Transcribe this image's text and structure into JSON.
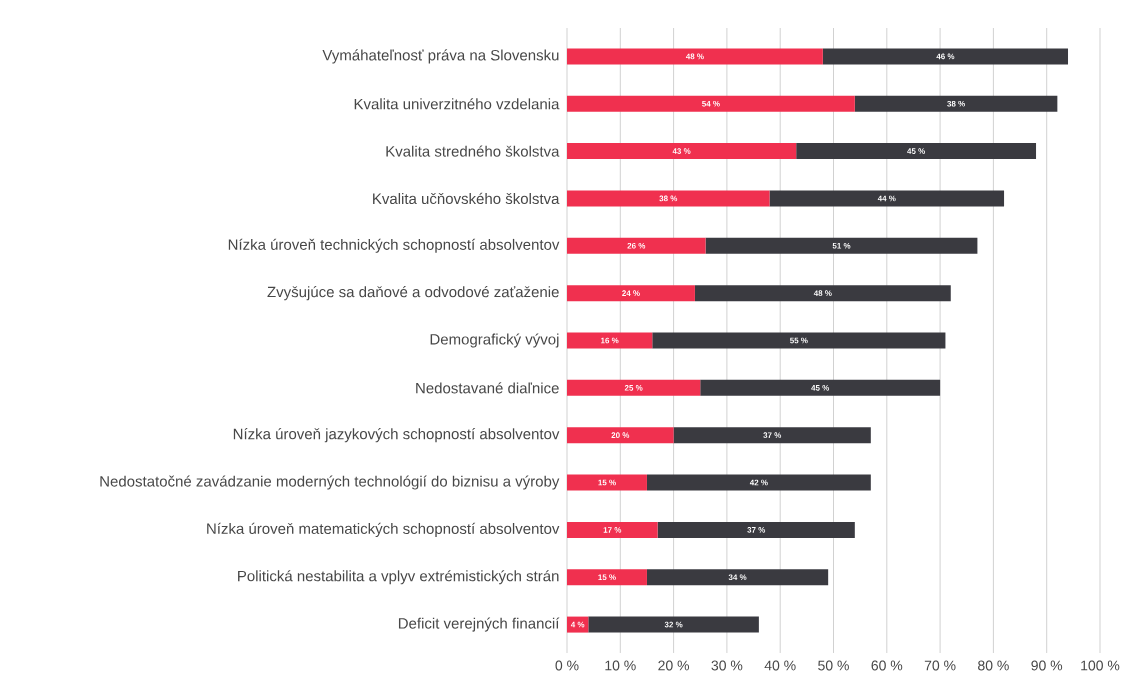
{
  "chart_data": {
    "type": "bar",
    "orientation": "horizontal",
    "stacked": true,
    "grid": "x",
    "categories": [
      "Vymáhateľnosť práva na Slovensku",
      "Kvalita univerzitného vzdelania",
      "Kvalita stredného školstva",
      "Kvalita učňovského školstva",
      "Nízka úroveň technických schopností absolventov",
      "Zvyšujúce sa daňové a odvodové zaťaženie",
      "Demografický vývoj",
      "Nedostavané diaľnice",
      "Nízka úroveň jazykových schopností absolventov",
      "Nedostatočné zavádzanie moderných technológií do biznisu a výroby",
      "Nízka úroveň matematických schopností absolventov",
      "Politická nestabilita a vplyv extrémistických strán",
      "Deficit verejných financií"
    ],
    "series": [
      {
        "color": "#f0304f",
        "values": [
          48,
          54,
          43,
          38,
          26,
          24,
          16,
          25,
          20,
          15,
          17,
          15,
          4
        ],
        "value_labels": [
          "48 %",
          "54 %",
          "43 %",
          "38 %",
          "26 %",
          "24 %",
          "16 %",
          "25 %",
          "20 %",
          "15 %",
          "17 %",
          "15 %",
          "4 %"
        ]
      },
      {
        "color": "#3a3a40",
        "values": [
          46,
          38,
          45,
          44,
          51,
          48,
          55,
          45,
          37,
          42,
          37,
          34,
          32
        ],
        "value_labels": [
          "46 %",
          "38 %",
          "45 %",
          "44 %",
          "51 %",
          "48 %",
          "55 %",
          "45 %",
          "37 %",
          "42 %",
          "37 %",
          "34 %",
          "32 %"
        ]
      }
    ],
    "xlim": [
      0,
      100
    ],
    "xticks": [
      {
        "value": 0,
        "label": "0 %"
      },
      {
        "value": 10,
        "label": "10 %"
      },
      {
        "value": 20,
        "label": "20 %"
      },
      {
        "value": 30,
        "label": "30 %"
      },
      {
        "value": 40,
        "label": "40 %"
      },
      {
        "value": 50,
        "label": "50 %"
      },
      {
        "value": 60,
        "label": "60 %"
      },
      {
        "value": 70,
        "label": "70 %"
      },
      {
        "value": 80,
        "label": "80 %"
      },
      {
        "value": 90,
        "label": "90 %"
      },
      {
        "value": 100,
        "label": "100 %"
      }
    ]
  }
}
